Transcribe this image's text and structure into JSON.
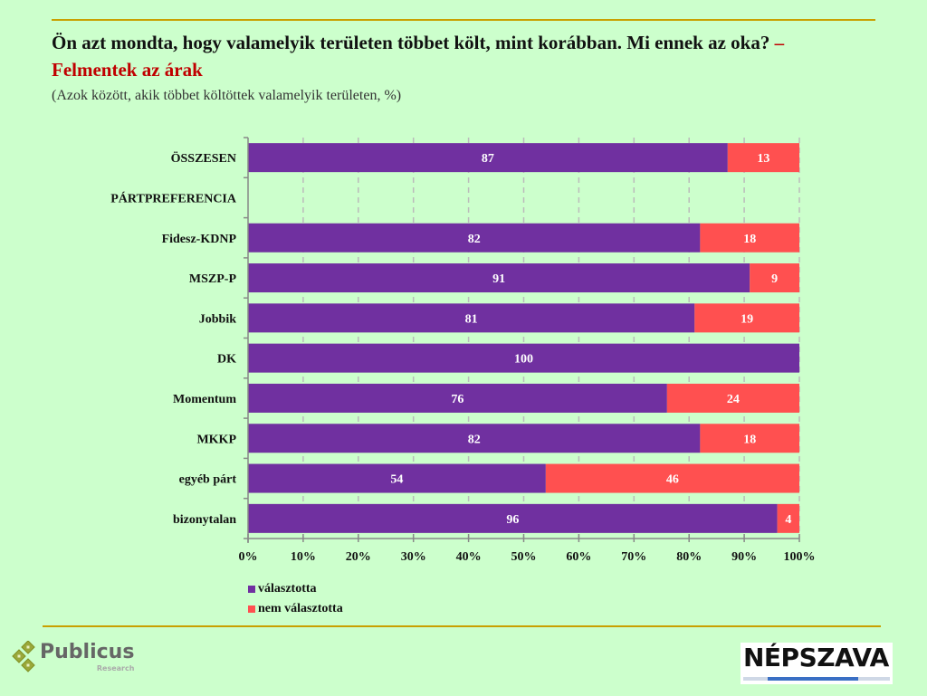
{
  "header": {
    "title_main": "Ön azt mondta, hogy valamelyik területen többet költ, mint korábban. Mi ennek az oka?",
    "title_accent": "– Felmentek az árak",
    "subtitle": "(Azok között, akik többet költöttek valamelyik területen, %)"
  },
  "colors": {
    "background": "#ccffcc",
    "rule": "#c9a000",
    "series_chose": "#7030a0",
    "series_not_chose": "#ff5050",
    "accent_text": "#c00000"
  },
  "chart_data": {
    "type": "bar",
    "orientation": "horizontal",
    "stacked": true,
    "title": "Ön azt mondta, hogy valamelyik területen többet költ, mint korábban. Mi ennek az oka? – Felmentek az árak",
    "subtitle": "(Azok között, akik többet költöttek valamelyik területen, %)",
    "categories": [
      "ÖSSZESEN",
      "PÁRTPREFERENCIA",
      "Fidesz-KDNP",
      "MSZP-P",
      "Jobbik",
      "DK",
      "Momentum",
      "MKKP",
      "egyéb párt",
      "bizonytalan"
    ],
    "series": [
      {
        "name": "választotta",
        "color": "#7030a0",
        "values": [
          87,
          null,
          82,
          91,
          81,
          100,
          76,
          82,
          54,
          96
        ]
      },
      {
        "name": "nem választotta",
        "color": "#ff5050",
        "values": [
          13,
          null,
          18,
          9,
          19,
          0,
          24,
          18,
          46,
          4
        ]
      }
    ],
    "xlim": [
      0,
      100
    ],
    "x_ticks": [
      "0%",
      "10%",
      "20%",
      "30%",
      "40%",
      "50%",
      "60%",
      "70%",
      "80%",
      "90%",
      "100%"
    ],
    "xlabel": "",
    "ylabel": "",
    "grid": "vertical dashed",
    "legend_position": "bottom-left"
  },
  "footer": {
    "publicus_name": "Publicus",
    "publicus_sub": "Research",
    "nepszava_name": "NÉPSZAVA"
  }
}
